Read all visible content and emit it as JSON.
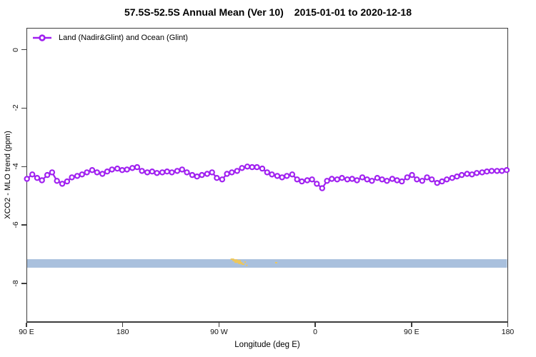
{
  "header": {
    "title": "57.5S-52.5S Annual Mean (Ver 10)",
    "date_range": "2015-01-01 to 2020-12-18"
  },
  "legend": {
    "label": "Land (Nadir&Glint) and Ocean (Glint)",
    "marker": "open-circle-on-line",
    "color": "#a020f0"
  },
  "axes": {
    "x": {
      "title": "Longitude (deg E)",
      "range": [
        90,
        540
      ],
      "ticks": [
        {
          "pos": 90,
          "label": "90 E"
        },
        {
          "pos": 180,
          "label": "180"
        },
        {
          "pos": 270,
          "label": "90 W"
        },
        {
          "pos": 360,
          "label": "0"
        },
        {
          "pos": 450,
          "label": "90 E"
        },
        {
          "pos": 540,
          "label": "180"
        }
      ]
    },
    "y": {
      "title": "XCO2 - MLO trend (ppm)",
      "range": [
        -9.35,
        0.75
      ],
      "ticks": [
        {
          "pos": 0,
          "label": "0"
        },
        {
          "pos": -2,
          "label": "-2"
        },
        {
          "pos": -4,
          "label": "-4"
        },
        {
          "pos": -6,
          "label": "-6"
        },
        {
          "pos": -8,
          "label": "-8"
        }
      ]
    }
  },
  "chart_data": {
    "type": "line",
    "title": "57.5S-52.5S Annual Mean (Ver 10)  2015-01-01 to 2020-12-18",
    "xlabel": "Longitude (deg E)",
    "ylabel": "XCO2 - MLO trend (ppm)",
    "xlim": [
      90,
      540
    ],
    "ylim": [
      -9.35,
      0.75
    ],
    "grid": false,
    "legend_position": "top-left",
    "series": [
      {
        "name": "Land (Nadir&Glint) and Ocean (Glint)",
        "color": "#a020f0",
        "marker": "open-circle",
        "x": [
          90.5,
          95.5,
          100,
          104.5,
          109.5,
          114,
          118.5,
          123.5,
          128,
          132.5,
          137.5,
          142,
          146.5,
          151.5,
          156,
          161,
          165.5,
          170,
          175,
          179.5,
          184,
          189,
          193.5,
          198,
          203,
          207.5,
          212,
          217,
          221.5,
          226,
          231,
          235.5,
          240,
          245,
          249.5,
          254,
          259,
          263.5,
          268,
          273,
          277.5,
          282,
          287,
          291.5,
          296.5,
          301,
          305.5,
          310.5,
          315,
          319.5,
          324.5,
          329,
          333.5,
          338.5,
          343,
          347.5,
          352.5,
          357,
          361.5,
          366.5,
          371,
          375.5,
          380.5,
          385,
          390,
          394.5,
          399,
          404,
          408.5,
          413,
          418,
          422.5,
          427,
          432,
          436.5,
          441,
          446,
          450.5,
          455,
          460,
          464.5,
          469,
          474,
          478.5,
          483,
          488,
          492.5,
          497,
          502,
          506.5,
          511,
          516,
          520.5,
          525,
          530,
          534.5,
          539
        ],
        "y": [
          -4.42,
          -4.27,
          -4.39,
          -4.47,
          -4.29,
          -4.2,
          -4.49,
          -4.59,
          -4.51,
          -4.37,
          -4.32,
          -4.27,
          -4.2,
          -4.12,
          -4.2,
          -4.25,
          -4.17,
          -4.1,
          -4.07,
          -4.12,
          -4.1,
          -4.05,
          -4.02,
          -4.15,
          -4.2,
          -4.17,
          -4.22,
          -4.2,
          -4.17,
          -4.2,
          -4.15,
          -4.1,
          -4.2,
          -4.29,
          -4.34,
          -4.29,
          -4.25,
          -4.2,
          -4.39,
          -4.44,
          -4.25,
          -4.2,
          -4.15,
          -4.05,
          -4.0,
          -4.02,
          -4.02,
          -4.07,
          -4.2,
          -4.27,
          -4.32,
          -4.37,
          -4.32,
          -4.27,
          -4.44,
          -4.51,
          -4.47,
          -4.44,
          -4.59,
          -4.74,
          -4.49,
          -4.42,
          -4.44,
          -4.39,
          -4.44,
          -4.42,
          -4.47,
          -4.37,
          -4.44,
          -4.49,
          -4.39,
          -4.44,
          -4.49,
          -4.42,
          -4.47,
          -4.51,
          -4.37,
          -4.29,
          -4.44,
          -4.49,
          -4.37,
          -4.44,
          -4.56,
          -4.51,
          -4.44,
          -4.39,
          -4.34,
          -4.29,
          -4.25,
          -4.27,
          -4.22,
          -4.2,
          -4.17,
          -4.15,
          -4.15,
          -4.15,
          -4.12
        ]
      }
    ],
    "band": {
      "description": "horizontal shaded band across full longitude range",
      "color": "#a9c0dd",
      "x_from": 90,
      "x_to": 540,
      "y_from": -7.46,
      "y_to": -7.17
    },
    "specks": {
      "description": "small gold land-topography marks inside the band",
      "color": "#eec75a",
      "points": [
        {
          "x": 282.5,
          "y": -7.17,
          "w": 5,
          "h": 2
        },
        {
          "x": 285.0,
          "y": -7.21,
          "w": 7,
          "h": 3
        },
        {
          "x": 287.5,
          "y": -7.25,
          "w": 9,
          "h": 4
        },
        {
          "x": 290.0,
          "y": -7.3,
          "w": 6,
          "h": 3
        },
        {
          "x": 292.5,
          "y": -7.34,
          "w": 4,
          "h": 2
        },
        {
          "x": 294.5,
          "y": -7.27,
          "w": 2,
          "h": 2
        },
        {
          "x": 296.0,
          "y": -7.38,
          "w": 2,
          "h": 2
        },
        {
          "x": 323.5,
          "y": -7.29,
          "w": 3,
          "h": 2
        }
      ]
    }
  }
}
